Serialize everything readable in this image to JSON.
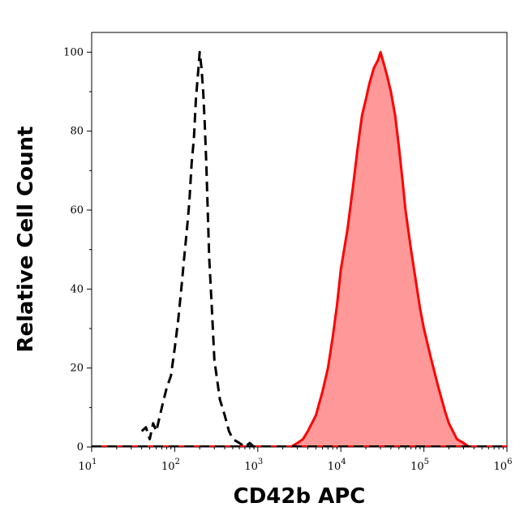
{
  "chart_data": {
    "type": "area",
    "title": "",
    "xlabel": "CD42b APC",
    "ylabel": "Relative Cell Count",
    "x_scale": "log",
    "xlim": [
      10,
      1000000
    ],
    "ylim": [
      0,
      105
    ],
    "x_tick_labels": [
      {
        "value": 10,
        "base": "10",
        "exp": "1"
      },
      {
        "value": 100,
        "base": "10",
        "exp": "2"
      },
      {
        "value": 1000,
        "base": "10",
        "exp": "3"
      },
      {
        "value": 10000,
        "base": "10",
        "exp": "4"
      },
      {
        "value": 100000,
        "base": "10",
        "exp": "5"
      },
      {
        "value": 1000000,
        "base": "10",
        "exp": "6"
      }
    ],
    "y_ticks": [
      0,
      20,
      40,
      60,
      80,
      100
    ],
    "y_tick_labels": [
      "0",
      "20",
      "40",
      "60",
      "80",
      "100"
    ],
    "grid": false,
    "legend": "none",
    "series": [
      {
        "style": "dashed",
        "color": "#000000",
        "x": [
          40,
          45,
          50,
          55,
          60,
          70,
          80,
          90,
          100,
          110,
          120,
          130,
          140,
          150,
          160,
          170,
          180,
          190,
          200,
          210,
          220,
          230,
          240,
          250,
          260,
          280,
          300,
          350,
          400,
          450,
          500,
          600,
          700,
          800,
          900
        ],
        "y": [
          4,
          5,
          2,
          6,
          4,
          10,
          15,
          18,
          25,
          32,
          40,
          48,
          55,
          62,
          72,
          78,
          88,
          94,
          100,
          96,
          90,
          82,
          72,
          60,
          48,
          35,
          22,
          12,
          8,
          4,
          2,
          1,
          0,
          1,
          0
        ]
      },
      {
        "style": "solid-filled",
        "color": "#ff0000",
        "fill": "#ff9999",
        "x": [
          2500,
          3000,
          3500,
          4000,
          5000,
          6000,
          7000,
          8000,
          9000,
          10000,
          12000,
          14000,
          16000,
          18000,
          20000,
          22000,
          25000,
          28000,
          30000,
          33000,
          36000,
          40000,
          45000,
          50000,
          55000,
          60000,
          70000,
          80000,
          90000,
          100000,
          120000,
          150000,
          180000,
          200000,
          250000,
          300000,
          350000
        ],
        "y": [
          0,
          1,
          2,
          4,
          8,
          14,
          20,
          28,
          36,
          45,
          55,
          66,
          76,
          84,
          88,
          92,
          96,
          98,
          100,
          97,
          94,
          90,
          84,
          76,
          68,
          60,
          50,
          42,
          35,
          30,
          23,
          15,
          9,
          6,
          2,
          1,
          0
        ]
      }
    ]
  }
}
